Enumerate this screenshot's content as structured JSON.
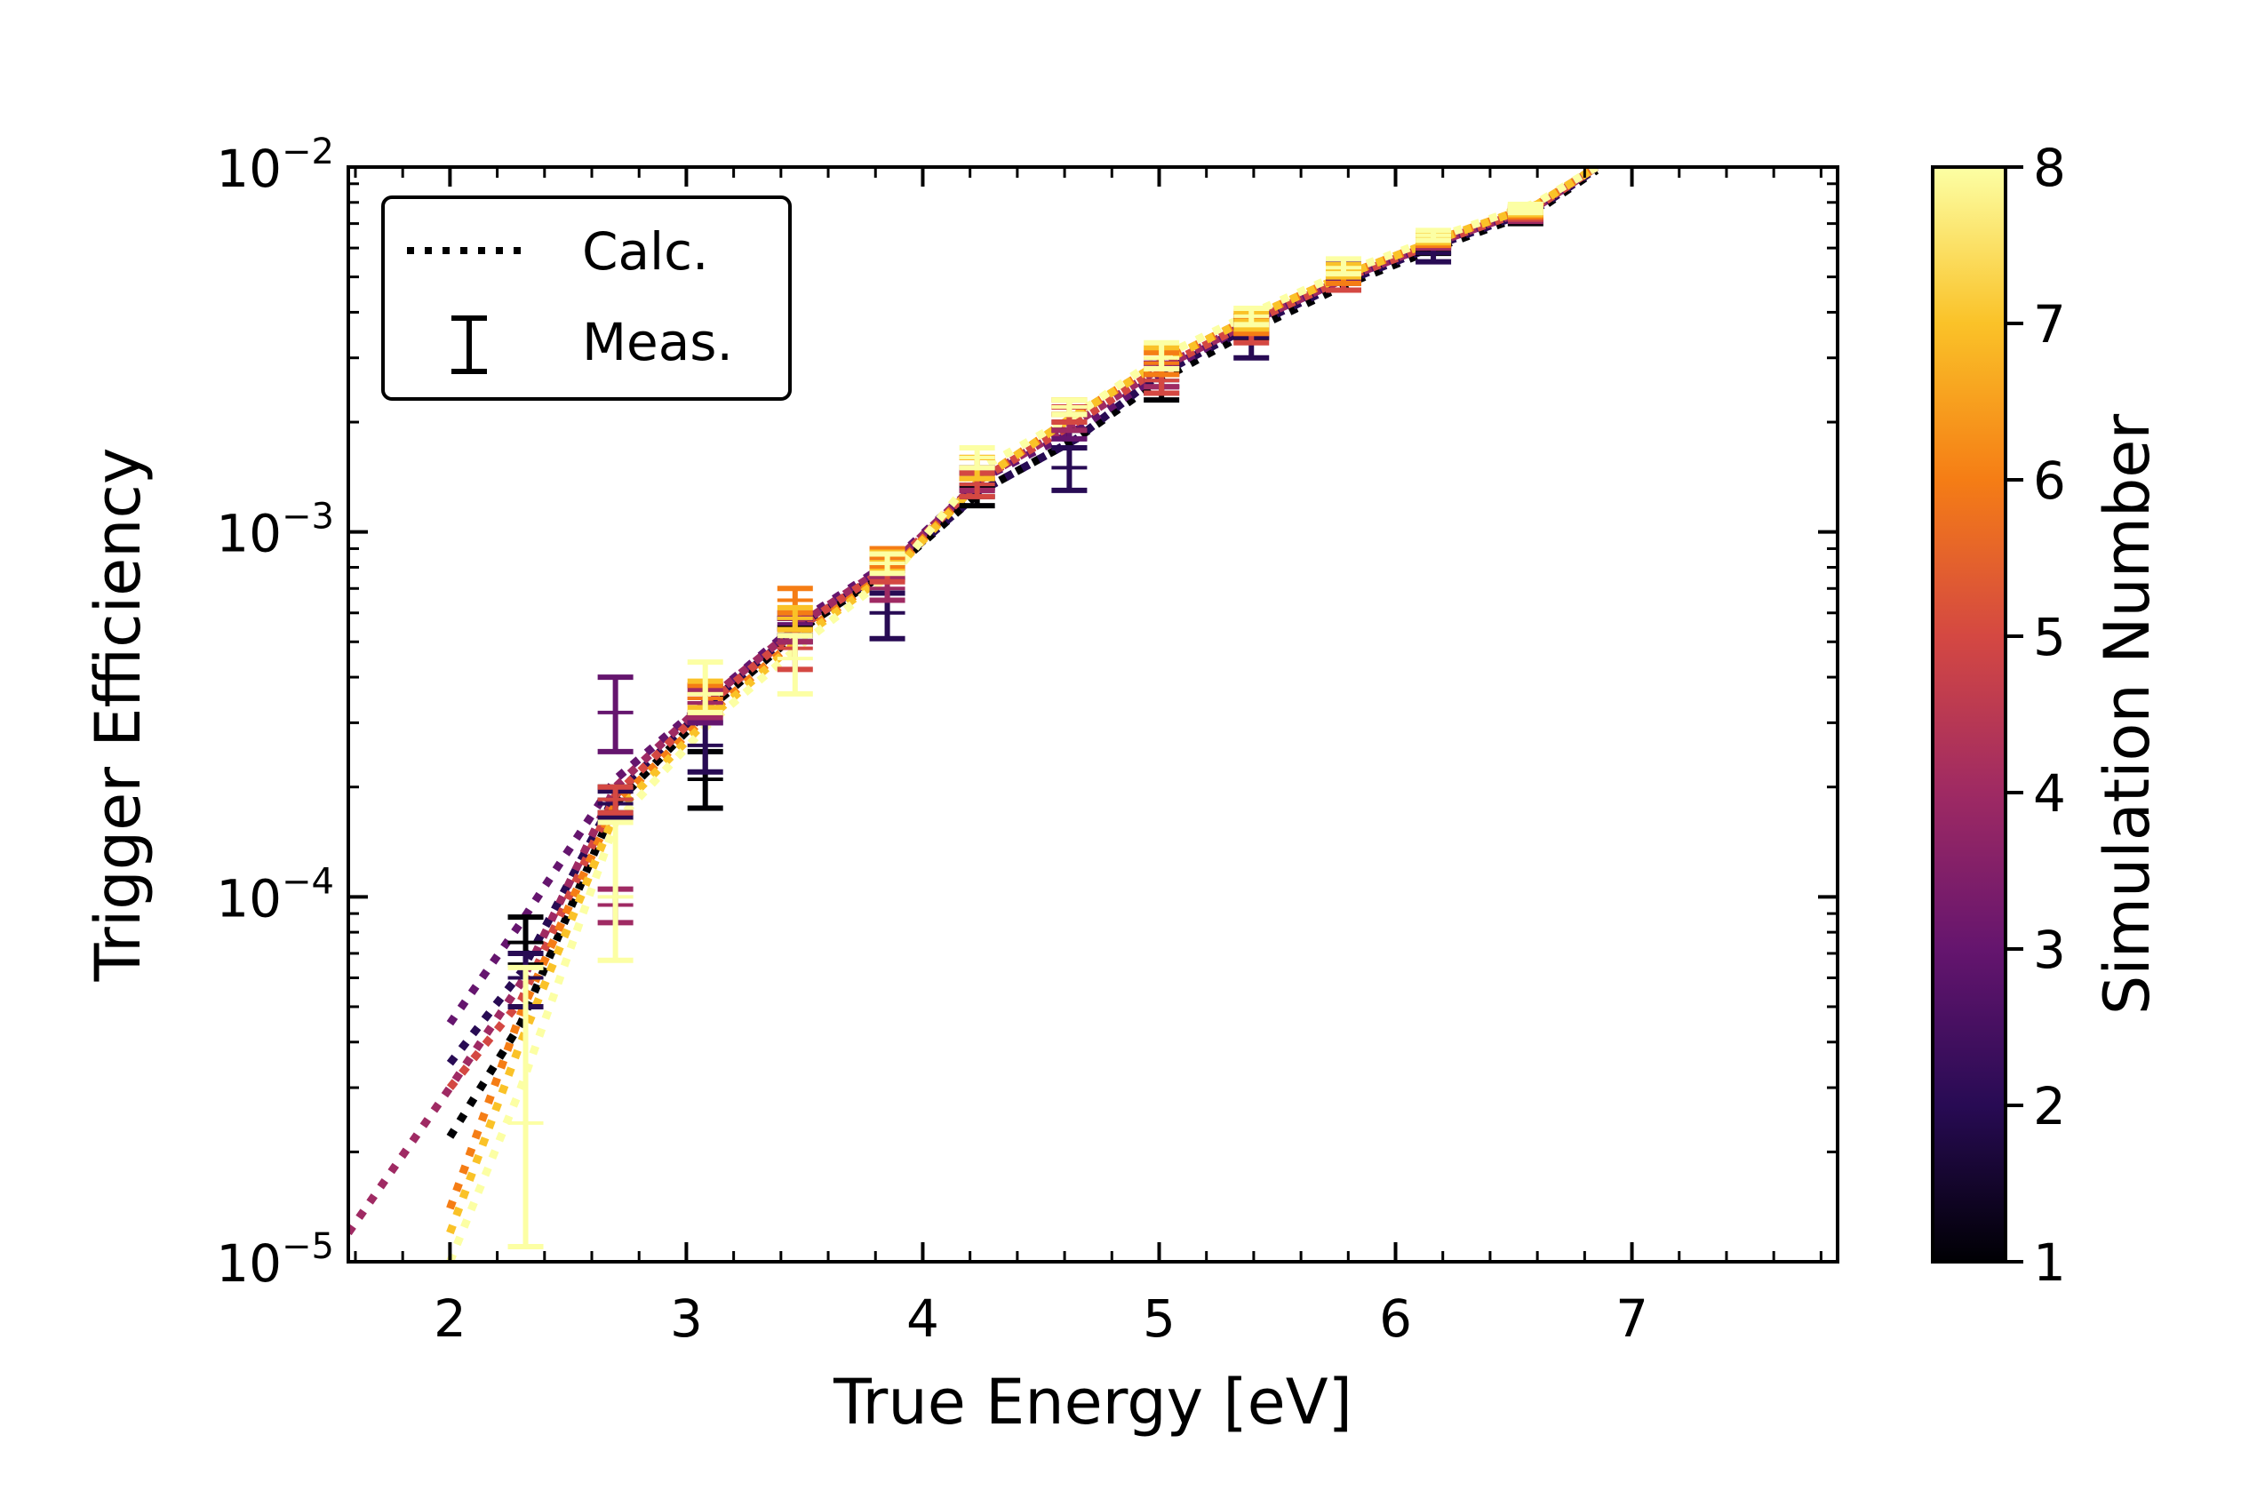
{
  "chart_data": {
    "type": "scatter",
    "title": "",
    "xlabel": "True Energy [eV]",
    "ylabel": "Trigger Efficiency",
    "xlim": [
      1.57,
      7.87
    ],
    "ylim": [
      1e-05,
      0.01
    ],
    "yscale": "log",
    "grid": false,
    "x_ticks": [
      2,
      3,
      4,
      5,
      6,
      7
    ],
    "x_tick_labels": [
      "2",
      "3",
      "4",
      "5",
      "6",
      "7"
    ],
    "y_ticks": [
      1e-05,
      0.0001,
      0.001,
      0.01
    ],
    "y_tick_labels": [
      {
        "base": "10",
        "exp": "−5"
      },
      {
        "base": "10",
        "exp": "−4"
      },
      {
        "base": "10",
        "exp": "−3"
      },
      {
        "base": "10",
        "exp": "−2"
      }
    ],
    "legend": {
      "placement": "top-left",
      "entries": [
        {
          "label": "Calc.",
          "style": "dotted-line",
          "color": "#000000"
        },
        {
          "label": "Meas.",
          "style": "errorbar",
          "color": "#000000"
        }
      ]
    },
    "colorbar": {
      "label": "Simulation Number",
      "range": [
        1,
        8
      ],
      "ticks": [
        1,
        2,
        3,
        4,
        5,
        6,
        7,
        8
      ],
      "tick_labels": [
        "1",
        "2",
        "3",
        "4",
        "5",
        "6",
        "7",
        "8"
      ],
      "colormap": "inferno",
      "colors": [
        "#000004",
        "#280b54",
        "#65156e",
        "#9f2a63",
        "#d44842",
        "#f57d15",
        "#fac228",
        "#fcffa4"
      ]
    },
    "calc_curves": [
      {
        "sim": 1,
        "x": [
          2.0,
          2.3,
          2.7,
          3.1,
          3.5,
          3.9,
          4.25,
          4.65,
          5.0,
          5.4,
          5.8,
          6.2,
          6.6,
          6.85
        ],
        "y": [
          2.2e-05,
          4.5e-05,
          0.00018,
          0.00033,
          0.00055,
          0.00082,
          0.0013,
          0.0018,
          0.0026,
          0.0036,
          0.0048,
          0.0061,
          0.0076,
          0.0098
        ]
      },
      {
        "sim": 2,
        "x": [
          2.0,
          2.3,
          2.7,
          3.1,
          3.5,
          3.9,
          4.25,
          4.65,
          5.0,
          5.4,
          5.8,
          6.2,
          6.6,
          6.85
        ],
        "y": [
          3.5e-05,
          6.2e-05,
          0.00019,
          0.00034,
          0.00056,
          0.00083,
          0.0013,
          0.0018,
          0.0027,
          0.0037,
          0.0049,
          0.0062,
          0.0077,
          0.0099
        ]
      },
      {
        "sim": 3,
        "x": [
          2.0,
          2.3,
          2.7,
          3.1,
          3.5,
          3.9,
          4.25,
          4.65,
          5.0,
          5.4,
          5.8,
          6.2,
          6.6,
          6.85
        ],
        "y": [
          4.5e-05,
          8.5e-05,
          0.00021,
          0.00035,
          0.00058,
          0.00086,
          0.0014,
          0.0019,
          0.0027,
          0.0038,
          0.005,
          0.0063,
          0.0078,
          0.01
        ]
      },
      {
        "sim": 4,
        "x": [
          1.57,
          2.0,
          2.3,
          2.7,
          3.1,
          3.5,
          3.9,
          4.25,
          4.65,
          5.0,
          5.4,
          5.8,
          6.2,
          6.6,
          6.85
        ],
        "y": [
          1.2e-05,
          3e-05,
          5.8e-05,
          0.0002,
          0.00035,
          0.00057,
          0.00085,
          0.0014,
          0.002,
          0.0028,
          0.0038,
          0.005,
          0.0063,
          0.0078,
          0.01
        ]
      },
      {
        "sim": 5,
        "x": [
          2.0,
          2.3,
          2.7,
          3.1,
          3.5,
          3.9,
          4.25,
          4.65,
          5.0,
          5.4,
          5.8,
          6.2,
          6.6,
          6.85
        ],
        "y": [
          3e-05,
          5.2e-05,
          0.00019,
          0.00034,
          0.00056,
          0.00084,
          0.0014,
          0.002,
          0.0028,
          0.0038,
          0.005,
          0.0063,
          0.0078,
          0.01
        ]
      },
      {
        "sim": 6,
        "x": [
          2.0,
          2.3,
          2.7,
          3.1,
          3.5,
          3.9,
          4.25,
          4.65,
          5.0,
          5.4,
          5.8,
          6.2,
          6.6,
          6.85
        ],
        "y": [
          1.4e-05,
          4.8e-05,
          0.00018,
          0.00032,
          0.00053,
          0.00082,
          0.0014,
          0.0021,
          0.0029,
          0.0039,
          0.0051,
          0.0064,
          0.0079,
          0.01
        ]
      },
      {
        "sim": 7,
        "x": [
          2.0,
          2.3,
          2.7,
          3.1,
          3.5,
          3.9,
          4.25,
          4.65,
          5.0,
          5.4,
          5.8,
          6.2,
          6.6,
          6.85
        ],
        "y": [
          1.2e-05,
          4e-05,
          0.00017,
          0.00031,
          0.00052,
          0.00081,
          0.0014,
          0.0021,
          0.0029,
          0.0039,
          0.0051,
          0.0064,
          0.0079,
          0.01
        ]
      },
      {
        "sim": 8,
        "x": [
          2.0,
          2.3,
          2.7,
          3.1,
          3.5,
          3.9,
          4.25,
          4.65,
          5.0,
          5.4,
          5.8,
          6.2,
          6.6,
          6.85
        ],
        "y": [
          1e-05,
          3e-05,
          0.00016,
          0.0003,
          0.0005,
          0.0008,
          0.0015,
          0.0021,
          0.003,
          0.004,
          0.0052,
          0.0065,
          0.008,
          0.01
        ]
      }
    ],
    "measurements": [
      {
        "sim": 1,
        "x": [
          2.32,
          2.7,
          3.08,
          3.46,
          3.85,
          4.23,
          4.62,
          5.01,
          5.39,
          5.78,
          6.16,
          6.55
        ],
        "y": [
          7.5e-05,
          0.000185,
          0.00021,
          0.00055,
          0.00078,
          0.00125,
          0.0018,
          0.0025,
          0.0036,
          0.0048,
          0.006,
          0.0072
        ],
        "yerr_low": [
          6.5e-05,
          0.00017,
          0.000175,
          0.00052,
          0.00074,
          0.00118,
          0.0017,
          0.0023,
          0.0034,
          0.0046,
          0.0058,
          0.007
        ],
        "yerr_high": [
          8.8e-05,
          0.0002,
          0.00025,
          0.00058,
          0.00082,
          0.00132,
          0.0019,
          0.0027,
          0.0038,
          0.005,
          0.0062,
          0.0074
        ]
      },
      {
        "sim": 2,
        "x": [
          2.32,
          2.7,
          3.08,
          3.46,
          3.85,
          4.23,
          4.62,
          5.01,
          5.39,
          5.78,
          6.16,
          6.55
        ],
        "y": [
          6e-05,
          0.00018,
          0.00026,
          0.00054,
          0.0006,
          0.00135,
          0.0015,
          0.0026,
          0.0034,
          0.005,
          0.0058,
          0.0073
        ],
        "yerr_low": [
          5e-05,
          0.000165,
          0.00022,
          0.0005,
          0.00051,
          0.00125,
          0.0013,
          0.0024,
          0.003,
          0.0046,
          0.0055,
          0.0071
        ],
        "yerr_high": [
          7e-05,
          0.000195,
          0.0003,
          0.00058,
          0.00068,
          0.00145,
          0.0017,
          0.0028,
          0.0037,
          0.0054,
          0.0061,
          0.0075
        ]
      },
      {
        "sim": 3,
        "x": [
          2.7,
          3.08,
          3.46,
          3.85,
          4.23,
          4.62,
          5.01,
          5.39,
          5.78,
          6.16,
          6.55
        ],
        "y": [
          0.00032,
          0.00034,
          0.00056,
          0.0008,
          0.0014,
          0.0019,
          0.0027,
          0.0037,
          0.0052,
          0.0062,
          0.0074
        ],
        "yerr_low": [
          0.00025,
          0.0003,
          0.00052,
          0.00075,
          0.0013,
          0.0018,
          0.0025,
          0.0035,
          0.0049,
          0.006,
          0.0072
        ],
        "yerr_high": [
          0.0004,
          0.00038,
          0.0006,
          0.00085,
          0.0015,
          0.002,
          0.0029,
          0.0039,
          0.0055,
          0.0064,
          0.0076
        ]
      },
      {
        "sim": 4,
        "x": [
          2.7,
          3.08,
          3.46,
          3.85,
          4.23,
          4.62,
          5.01,
          5.39,
          5.78,
          6.16,
          6.55
        ],
        "y": [
          9.5e-05,
          0.00034,
          0.00054,
          0.0007,
          0.0014,
          0.002,
          0.0027,
          0.0037,
          0.005,
          0.0062,
          0.0073
        ],
        "yerr_low": [
          8.5e-05,
          0.00031,
          0.0005,
          0.00065,
          0.0013,
          0.0019,
          0.0025,
          0.0035,
          0.0048,
          0.006,
          0.0071
        ],
        "yerr_high": [
          0.000105,
          0.00037,
          0.00058,
          0.00075,
          0.0015,
          0.0021,
          0.0029,
          0.0039,
          0.0052,
          0.0064,
          0.0075
        ]
      },
      {
        "sim": 5,
        "x": [
          2.7,
          3.08,
          3.46,
          3.85,
          4.23,
          4.62,
          5.01,
          5.39,
          5.78,
          6.16,
          6.55
        ],
        "y": [
          0.000185,
          0.00035,
          0.00048,
          0.00078,
          0.00135,
          0.0021,
          0.0026,
          0.0035,
          0.0048,
          0.0063,
          0.0074
        ],
        "yerr_low": [
          0.00017,
          0.00032,
          0.00042,
          0.00073,
          0.00125,
          0.002,
          0.0024,
          0.0033,
          0.0046,
          0.0061,
          0.0072
        ],
        "yerr_high": [
          0.0002,
          0.00038,
          0.00054,
          0.00083,
          0.00145,
          0.0022,
          0.0028,
          0.0037,
          0.005,
          0.0065,
          0.0076
        ]
      },
      {
        "sim": 6,
        "x": [
          3.08,
          3.46,
          3.85,
          4.23,
          4.62,
          5.01,
          5.39,
          5.78,
          6.16,
          6.55
        ],
        "y": [
          0.00035,
          0.00065,
          0.00085,
          0.0015,
          0.0022,
          0.0029,
          0.0037,
          0.005,
          0.0063,
          0.0075
        ],
        "yerr_low": [
          0.00032,
          0.0006,
          0.0008,
          0.0014,
          0.0021,
          0.0027,
          0.0035,
          0.0048,
          0.0061,
          0.0073
        ],
        "yerr_high": [
          0.00038,
          0.0007,
          0.0009,
          0.0016,
          0.0023,
          0.0031,
          0.0039,
          0.0052,
          0.0065,
          0.0077
        ]
      },
      {
        "sim": 7,
        "x": [
          3.08,
          3.46,
          3.85,
          4.23,
          4.62,
          5.01,
          5.39,
          5.78,
          6.16,
          6.55
        ],
        "y": [
          0.00036,
          0.00058,
          0.00083,
          0.0015,
          0.0022,
          0.003,
          0.0038,
          0.0052,
          0.0064,
          0.0076
        ],
        "yerr_low": [
          0.00033,
          0.00054,
          0.00078,
          0.0014,
          0.0021,
          0.0028,
          0.0036,
          0.005,
          0.0062,
          0.0074
        ],
        "yerr_high": [
          0.00039,
          0.00062,
          0.00088,
          0.0016,
          0.0023,
          0.0032,
          0.004,
          0.0054,
          0.0066,
          0.0078
        ]
      },
      {
        "sim": 8,
        "x": [
          2.32,
          2.7,
          3.08,
          3.46,
          3.85,
          4.23,
          4.62,
          5.01,
          5.39,
          5.78,
          6.16,
          6.55
        ],
        "y": [
          2.4e-05,
          0.0001,
          0.00036,
          0.00045,
          0.00082,
          0.0016,
          0.0022,
          0.003,
          0.0039,
          0.0053,
          0.0065,
          0.0077
        ],
        "yerr_low": [
          1.1e-05,
          6.7e-05,
          0.00032,
          0.00036,
          0.00077,
          0.0015,
          0.0021,
          0.0028,
          0.0037,
          0.0051,
          0.0063,
          0.0075
        ],
        "yerr_high": [
          6.4e-05,
          0.00016,
          0.00044,
          0.00052,
          0.00087,
          0.0017,
          0.0023,
          0.0033,
          0.0041,
          0.0056,
          0.0067,
          0.0079
        ]
      }
    ]
  }
}
